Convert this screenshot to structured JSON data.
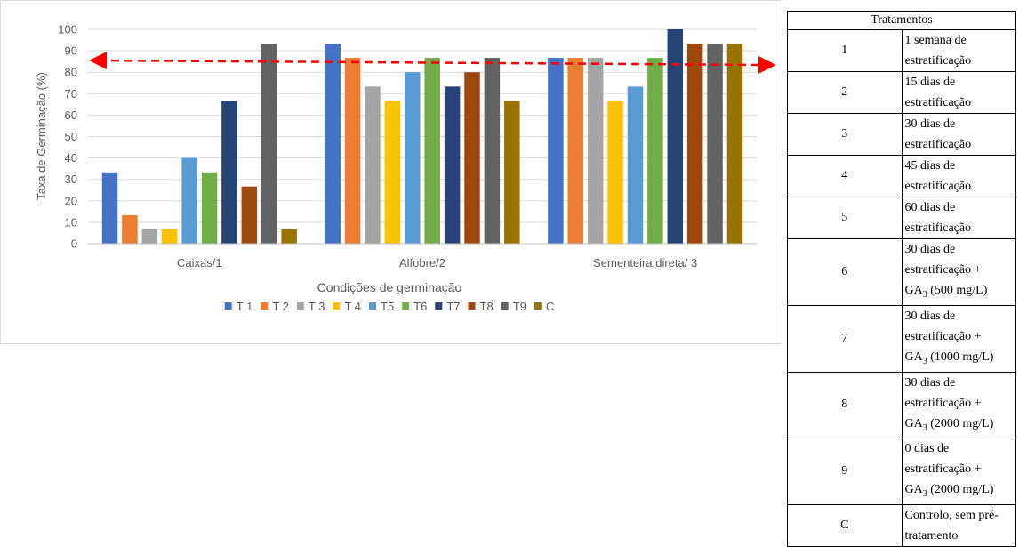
{
  "chart_data": {
    "type": "bar",
    "xlabel": "Condições de germinação",
    "ylabel": "Taxa de Germinação (%)",
    "ylim": [
      0,
      100
    ],
    "yticks": [
      0,
      10,
      20,
      30,
      40,
      50,
      60,
      70,
      80,
      90,
      100
    ],
    "grid": true,
    "legend_position": "bottom",
    "categories": [
      "Caixas/1",
      "Alfobre/2",
      "Sementeira direta/ 3"
    ],
    "reference_line": {
      "value": 85,
      "color": "#ff0000",
      "style": "dashed",
      "arrows": "both"
    },
    "series": [
      {
        "name": "T 1",
        "color": "#4472c4",
        "values": [
          33.3,
          93.3,
          86.7
        ]
      },
      {
        "name": "T 2",
        "color": "#ed7d31",
        "values": [
          13.3,
          86.7,
          86.7
        ]
      },
      {
        "name": "T 3",
        "color": "#a5a5a5",
        "values": [
          6.7,
          73.3,
          86.7
        ]
      },
      {
        "name": "T 4",
        "color": "#ffc000",
        "values": [
          6.7,
          66.7,
          66.7
        ]
      },
      {
        "name": "T5",
        "color": "#5b9bd5",
        "values": [
          40.0,
          80.0,
          73.3
        ]
      },
      {
        "name": "T6",
        "color": "#70ad47",
        "values": [
          33.3,
          86.7,
          86.7
        ]
      },
      {
        "name": "T7",
        "color": "#264478",
        "values": [
          66.7,
          73.3,
          100.0
        ]
      },
      {
        "name": "T8",
        "color": "#9e480e",
        "values": [
          26.7,
          80.0,
          93.3
        ]
      },
      {
        "name": "T9",
        "color": "#636363",
        "values": [
          93.3,
          86.7,
          93.3
        ]
      },
      {
        "name": "C",
        "color": "#997300",
        "values": [
          6.7,
          66.7,
          93.3
        ]
      }
    ]
  },
  "treatments_table": {
    "header": "Tratamentos",
    "rows": [
      {
        "id": "1",
        "lines": [
          {
            "text": "1 semana de estratificação"
          }
        ]
      },
      {
        "id": "2",
        "lines": [
          {
            "text": "15 dias de estratificação"
          }
        ]
      },
      {
        "id": "3",
        "lines": [
          {
            "text": "30 dias de estratificação"
          }
        ]
      },
      {
        "id": "4",
        "lines": [
          {
            "text": "45 dias de estratificação"
          }
        ]
      },
      {
        "id": "5",
        "lines": [
          {
            "text": "60 dias de estratificação"
          }
        ]
      },
      {
        "id": "6",
        "lines": [
          {
            "text": "30 dias de estratificação +"
          },
          {
            "pre": "GA",
            "sub": "3",
            "post": " (500 mg/L)"
          }
        ]
      },
      {
        "id": "7",
        "lines": [
          {
            "text": "30 dias de estratificação +"
          },
          {
            "pre": "GA",
            "sub": "3",
            "post": " (1000 mg/L)"
          }
        ]
      },
      {
        "id": "8",
        "lines": [
          {
            "text": "30 dias de estratificação +"
          },
          {
            "pre": "GA",
            "sub": "3",
            "post": " (2000 mg/L)"
          }
        ]
      },
      {
        "id": "9",
        "lines": [
          {
            "text": "0 dias de estratificação +"
          },
          {
            "pre": "GA",
            "sub": "3",
            "post": " (2000 mg/L)"
          }
        ]
      },
      {
        "id": "C",
        "lines": [
          {
            "text": "Controlo, sem pré-tratamento"
          }
        ]
      }
    ]
  }
}
